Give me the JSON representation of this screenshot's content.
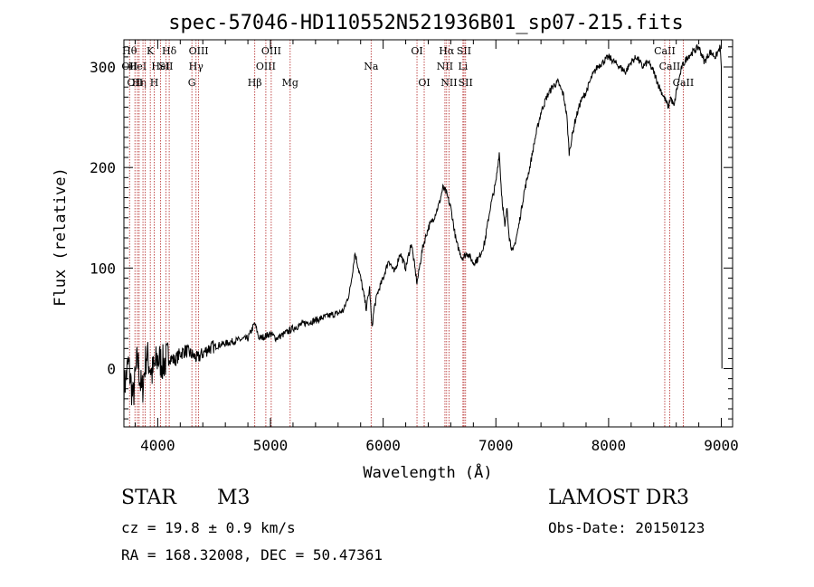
{
  "chart_data": {
    "type": "line",
    "title": "spec-57046-HD110552N521936B01_sp07-215.fits",
    "xlabel": "Wavelength (Å)",
    "ylabel": "Flux (relative)",
    "xlim": [
      3700,
      9100
    ],
    "ylim": [
      -58,
      327
    ],
    "xticks": [
      4000,
      5000,
      6000,
      7000,
      8000,
      9000
    ],
    "yticks": [
      0,
      100,
      200,
      300
    ],
    "grid": false,
    "line_color": "#000000",
    "marker_color": "#b22222",
    "series": [
      {
        "name": "flux",
        "x": [
          3700,
          3740,
          3780,
          3820,
          3860,
          3900,
          3950,
          4000,
          4050,
          4100,
          4150,
          4200,
          4250,
          4300,
          4350,
          4400,
          4450,
          4500,
          4600,
          4700,
          4800,
          4860,
          4900,
          4950,
          5000,
          5050,
          5100,
          5200,
          5300,
          5400,
          5500,
          5600,
          5650,
          5700,
          5720,
          5750,
          5780,
          5800,
          5850,
          5880,
          5900,
          5920,
          5950,
          6000,
          6050,
          6100,
          6150,
          6200,
          6250,
          6300,
          6350,
          6400,
          6450,
          6500,
          6530,
          6560,
          6600,
          6650,
          6700,
          6750,
          6800,
          6850,
          6900,
          6950,
          7000,
          7030,
          7050,
          7080,
          7100,
          7120,
          7150,
          7200,
          7250,
          7300,
          7350,
          7400,
          7450,
          7500,
          7550,
          7600,
          7630,
          7650,
          7700,
          7750,
          7800,
          7850,
          7900,
          7950,
          8000,
          8050,
          8100,
          8150,
          8200,
          8250,
          8300,
          8350,
          8400,
          8450,
          8500,
          8530,
          8550,
          8580,
          8600,
          8650,
          8700,
          8750,
          8800,
          8850,
          8900,
          8950,
          8990,
          9000,
          9005
        ],
        "y": [
          -20,
          5,
          -30,
          10,
          -25,
          15,
          -5,
          10,
          5,
          12,
          8,
          15,
          18,
          14,
          10,
          15,
          20,
          22,
          25,
          28,
          30,
          45,
          30,
          32,
          35,
          30,
          33,
          40,
          45,
          48,
          52,
          55,
          58,
          75,
          90,
          115,
          100,
          90,
          60,
          80,
          40,
          60,
          75,
          90,
          108,
          95,
          115,
          100,
          125,
          85,
          120,
          140,
          150,
          165,
          180,
          175,
          160,
          125,
          110,
          115,
          105,
          110,
          125,
          160,
          185,
          215,
          175,
          140,
          160,
          130,
          115,
          140,
          175,
          200,
          230,
          255,
          270,
          280,
          285,
          272,
          250,
          215,
          245,
          265,
          275,
          290,
          300,
          305,
          310,
          305,
          300,
          295,
          305,
          310,
          300,
          305,
          295,
          280,
          268,
          260,
          270,
          260,
          275,
          300,
          310,
          315,
          320,
          305,
          315,
          310,
          320,
          300,
          0
        ]
      }
    ],
    "line_markers": [
      {
        "x": 3750,
        "top": "Hθ",
        "mid": "OII",
        "low": ""
      },
      {
        "x": 3798,
        "top": "",
        "mid": "",
        "low": "OII"
      },
      {
        "x": 3820,
        "top": "",
        "mid": "HeI",
        "low": ""
      },
      {
        "x": 3835,
        "top": "",
        "mid": "",
        "low": "Hη"
      },
      {
        "x": 3869,
        "top": "",
        "mid": "",
        "low": ""
      },
      {
        "x": 3889,
        "top": "",
        "mid": "",
        "low": ""
      },
      {
        "x": 3934,
        "top": "K",
        "mid": "",
        "low": ""
      },
      {
        "x": 3969,
        "top": "",
        "mid": "",
        "low": "H"
      },
      {
        "x": 4026,
        "top": "",
        "mid": "HeI",
        "low": ""
      },
      {
        "x": 4072,
        "top": "",
        "mid": "SII",
        "low": ""
      },
      {
        "x": 4102,
        "top": "Hδ",
        "mid": "",
        "low": ""
      },
      {
        "x": 4303,
        "top": "",
        "mid": "",
        "low": "G"
      },
      {
        "x": 4340,
        "top": "",
        "mid": "Hγ",
        "low": ""
      },
      {
        "x": 4363,
        "top": "OIII",
        "mid": "",
        "low": ""
      },
      {
        "x": 4861,
        "top": "",
        "mid": "",
        "low": "Hβ"
      },
      {
        "x": 4959,
        "top": "",
        "mid": "OIII",
        "low": ""
      },
      {
        "x": 5007,
        "top": "OIII",
        "mid": "",
        "low": ""
      },
      {
        "x": 5175,
        "top": "",
        "mid": "",
        "low": "Mg"
      },
      {
        "x": 5893,
        "top": "",
        "mid": "Na",
        "low": ""
      },
      {
        "x": 6300,
        "top": "OI",
        "mid": "",
        "low": ""
      },
      {
        "x": 6364,
        "top": "",
        "mid": "",
        "low": "OI"
      },
      {
        "x": 6548,
        "top": "",
        "mid": "NII",
        "low": ""
      },
      {
        "x": 6563,
        "top": "Hα",
        "mid": "",
        "low": ""
      },
      {
        "x": 6584,
        "top": "",
        "mid": "",
        "low": "NII"
      },
      {
        "x": 6708,
        "top": "",
        "mid": "Li",
        "low": ""
      },
      {
        "x": 6717,
        "top": "SII",
        "mid": "",
        "low": ""
      },
      {
        "x": 6731,
        "top": "",
        "mid": "",
        "low": "SII"
      },
      {
        "x": 8498,
        "top": "CaII",
        "mid": "",
        "low": ""
      },
      {
        "x": 8542,
        "top": "",
        "mid": "CaII",
        "low": ""
      },
      {
        "x": 8662,
        "top": "",
        "mid": "",
        "low": "CaII"
      }
    ]
  },
  "info": {
    "object_type": "STAR",
    "subclass": "M3",
    "survey": "LAMOST DR3",
    "cz": "cz = 19.8 ± 0.9 km/s",
    "obs_date": "Obs-Date: 20150123",
    "coords": "RA = 168.32008, DEC =  50.47361"
  }
}
